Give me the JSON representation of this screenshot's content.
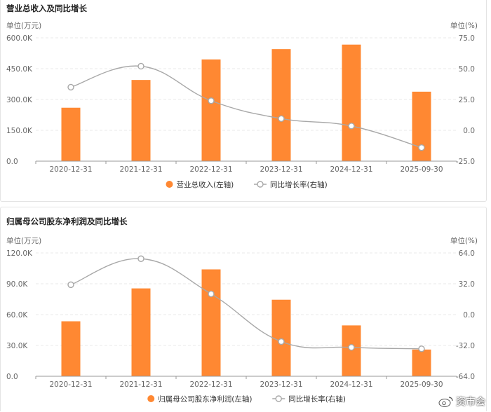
{
  "colors": {
    "bar": "#FF8832",
    "line": "#A8A8A8",
    "marker_fill": "#ffffff"
  },
  "watermark": "资市会",
  "chart_data": [
    {
      "type": "bar",
      "title": "营业总收入及同比增长",
      "left_unit": "单位(万元)",
      "right_unit": "单位(%)",
      "categories": [
        "2020-12-31",
        "2021-12-31",
        "2022-12-31",
        "2023-12-31",
        "2024-12-31",
        "2025-09-30"
      ],
      "y_ticks": [
        "0.0",
        "150.0K",
        "300.0K",
        "450.0K",
        "600.0K"
      ],
      "y2_ticks": [
        "-25.0",
        "0.0",
        "25.0",
        "50.0",
        "75.0"
      ],
      "ylim": [
        0,
        600000
      ],
      "y2lim": [
        -25,
        75
      ],
      "series": [
        {
          "name": "营业总收入(左轴)",
          "type": "bar",
          "axis": "left",
          "values": [
            260000,
            395000,
            495000,
            545000,
            567000,
            338000
          ]
        },
        {
          "name": "同比增长率(右轴)",
          "type": "line",
          "axis": "right",
          "values": [
            35.0,
            52.0,
            24.0,
            9.5,
            3.5,
            -14.0
          ]
        }
      ]
    },
    {
      "type": "bar",
      "title": "归属母公司股东净利润及同比增长",
      "left_unit": "单位(万元)",
      "right_unit": "单位(%)",
      "categories": [
        "2020-12-31",
        "2021-12-31",
        "2022-12-31",
        "2023-12-31",
        "2024-12-31",
        "2025-09-30"
      ],
      "y_ticks": [
        "0.0",
        "30.0K",
        "60.0K",
        "90.0K",
        "120.0K"
      ],
      "y2_ticks": [
        "-64.0",
        "-32.0",
        "0.0",
        "32.0",
        "64.0"
      ],
      "ylim": [
        0,
        120000
      ],
      "y2lim": [
        -64,
        64
      ],
      "series": [
        {
          "name": "归属母公司股东净利润(左轴)",
          "type": "bar",
          "axis": "left",
          "values": [
            53500,
            85500,
            104000,
            74500,
            49500,
            26000
          ]
        },
        {
          "name": "同比增长率(右轴)",
          "type": "line",
          "axis": "right",
          "values": [
            31.0,
            58.0,
            21.5,
            -28.0,
            -34.0,
            -35.5
          ]
        }
      ]
    }
  ]
}
